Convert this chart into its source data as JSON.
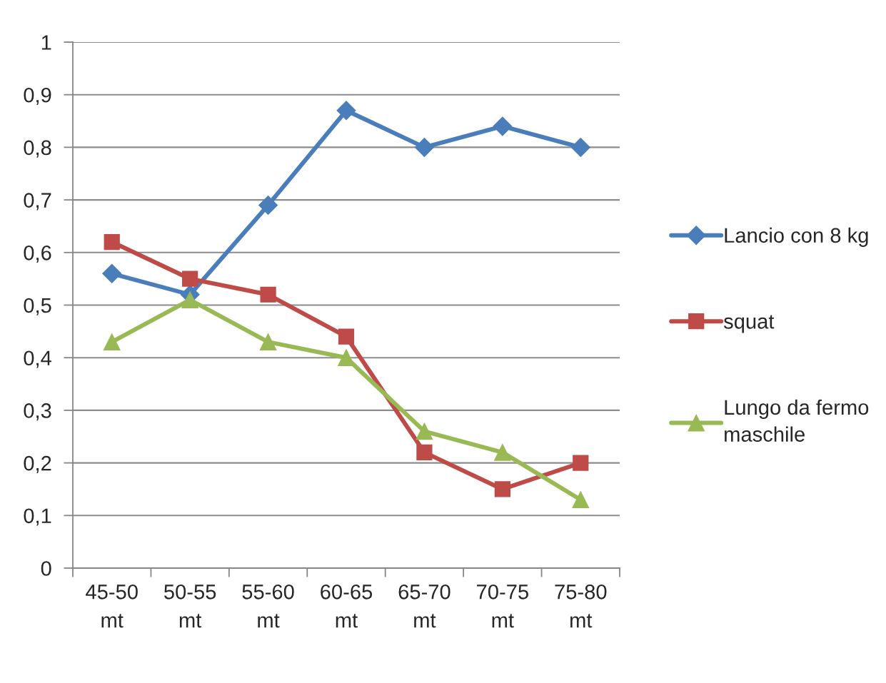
{
  "chart_data": {
    "type": "line",
    "categories": [
      "45-50\nmt",
      "50-55\nmt",
      "55-60\nmt",
      "60-65\nmt",
      "65-70\nmt",
      "70-75\nmt",
      "75-80\nmt"
    ],
    "series": [
      {
        "name": "Lancio con 8 kg",
        "color": "#4a7ebb",
        "marker": "diamond",
        "values": [
          0.56,
          0.52,
          0.69,
          0.87,
          0.8,
          0.84,
          0.8
        ]
      },
      {
        "name": "squat",
        "color": "#be4b48",
        "marker": "square",
        "values": [
          0.62,
          0.55,
          0.52,
          0.44,
          0.22,
          0.15,
          0.2
        ]
      },
      {
        "name": "Lungo da fermo\nmaschile",
        "color": "#98b954",
        "marker": "triangle",
        "values": [
          0.43,
          0.51,
          0.43,
          0.4,
          0.26,
          0.22,
          0.13
        ]
      }
    ],
    "ylim": [
      0,
      1
    ],
    "yticks": [
      0,
      {
        "value": 0.1,
        "label": "0,1"
      },
      {
        "value": 0.2,
        "label": "0,2"
      },
      {
        "value": 0.3,
        "label": "0,3"
      },
      {
        "value": 0.4,
        "label": "0,4"
      },
      {
        "value": 0.5,
        "label": "0,5"
      },
      {
        "value": 0.6,
        "label": "0,6"
      },
      {
        "value": 0.7,
        "label": "0,7"
      },
      {
        "value": 0.8,
        "label": "0,8"
      },
      {
        "value": 0.9,
        "label": "0,9"
      },
      1
    ],
    "grid": "y",
    "legend": "right",
    "line_style": "solid"
  }
}
